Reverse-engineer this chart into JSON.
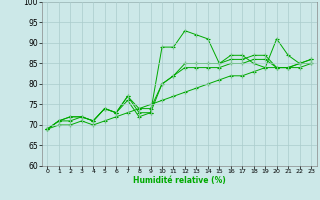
{
  "xlabel": "Humidité relative (%)",
  "background_color": "#cce8e8",
  "grid_color": "#aacccc",
  "line_color": "#00aa00",
  "xlim": [
    -0.5,
    23.5
  ],
  "ylim": [
    60,
    100
  ],
  "xticks": [
    0,
    1,
    2,
    3,
    4,
    5,
    6,
    7,
    8,
    9,
    10,
    11,
    12,
    13,
    14,
    15,
    16,
    17,
    18,
    19,
    20,
    21,
    22,
    23
  ],
  "yticks": [
    60,
    65,
    70,
    75,
    80,
    85,
    90,
    95,
    100
  ],
  "series": [
    [
      69,
      71,
      71,
      72,
      71,
      74,
      73,
      77,
      73,
      73,
      89,
      89,
      93,
      92,
      91,
      85,
      87,
      87,
      85,
      84,
      91,
      87,
      85,
      86
    ],
    [
      69,
      71,
      72,
      72,
      71,
      74,
      73,
      76,
      72,
      73,
      80,
      82,
      84,
      84,
      84,
      84,
      85,
      85,
      86,
      86,
      84,
      84,
      84,
      85
    ],
    [
      69,
      71,
      72,
      72,
      71,
      74,
      73,
      77,
      74,
      74,
      80,
      82,
      85,
      85,
      85,
      85,
      86,
      86,
      87,
      87,
      84,
      84,
      85,
      86
    ],
    [
      69,
      70,
      70,
      71,
      70,
      71,
      72,
      73,
      74,
      75,
      76,
      77,
      78,
      79,
      80,
      81,
      82,
      82,
      83,
      84,
      84,
      84,
      85,
      85
    ]
  ]
}
